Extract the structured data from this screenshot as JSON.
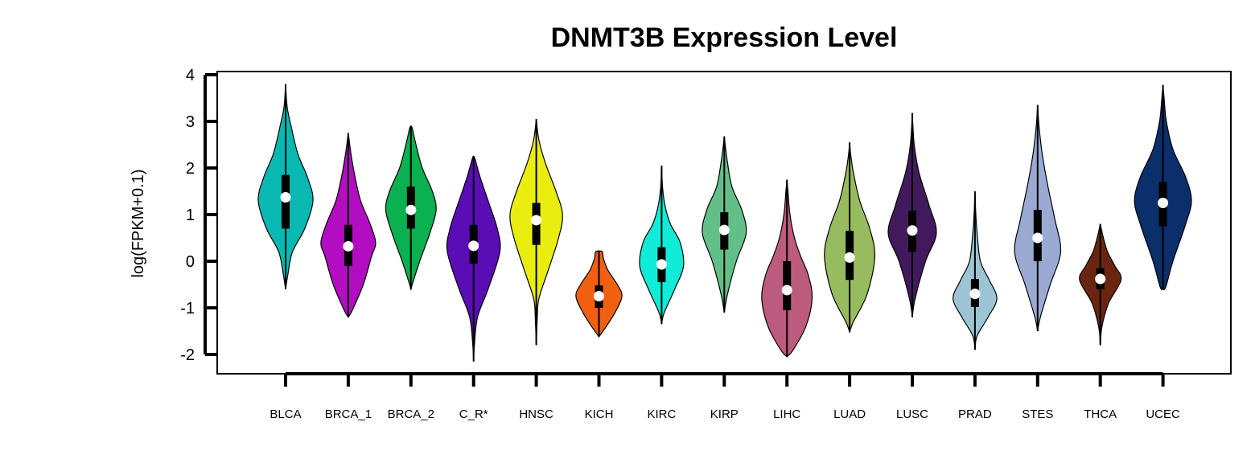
{
  "chart_data": {
    "type": "violin",
    "title": "DNMT3B Expression Level",
    "xlabel": "",
    "ylabel": "log(FPKM+0.1)",
    "ylim": [
      -2.4,
      4.1
    ],
    "yticks": [
      -2,
      -1,
      0,
      1,
      2,
      3,
      4
    ],
    "grid": false,
    "categories": [
      "BLCA",
      "BRCA_1",
      "BRCA_2",
      "C_R*",
      "HNSC",
      "KICH",
      "KIRC",
      "KIRP",
      "LIHC",
      "LUAD",
      "LUSC",
      "PRAD",
      "STES",
      "THCA",
      "UCEC"
    ],
    "series": [
      {
        "category": "BLCA",
        "color": "#0ab8b2",
        "min": -0.6,
        "max": 3.8,
        "q1": 0.7,
        "median": 1.37,
        "q3": 1.85,
        "width": 0.5,
        "profile": [
          [
            -0.6,
            0.0
          ],
          [
            -0.3,
            0.08
          ],
          [
            0.2,
            0.25
          ],
          [
            0.7,
            0.7
          ],
          [
            1.3,
            1.0
          ],
          [
            1.8,
            0.8
          ],
          [
            2.3,
            0.45
          ],
          [
            2.9,
            0.2
          ],
          [
            3.3,
            0.06
          ],
          [
            3.8,
            0.0
          ]
        ]
      },
      {
        "category": "BRCA_1",
        "color": "#b20dc1",
        "min": -1.2,
        "max": 2.75,
        "q1": -0.1,
        "median": 0.32,
        "q3": 0.78,
        "width": 0.5,
        "profile": [
          [
            -1.2,
            0.0
          ],
          [
            -1.05,
            0.15
          ],
          [
            -0.5,
            0.55
          ],
          [
            0.1,
            0.85
          ],
          [
            0.4,
            1.0
          ],
          [
            0.8,
            0.8
          ],
          [
            1.3,
            0.45
          ],
          [
            1.8,
            0.25
          ],
          [
            2.3,
            0.1
          ],
          [
            2.75,
            0.0
          ]
        ]
      },
      {
        "category": "BRCA_2",
        "color": "#0bb050",
        "min": -0.6,
        "max": 2.9,
        "q1": 0.7,
        "median": 1.1,
        "q3": 1.6,
        "width": 0.46,
        "profile": [
          [
            -0.6,
            0.0
          ],
          [
            -0.45,
            0.08
          ],
          [
            0.0,
            0.35
          ],
          [
            0.6,
            0.75
          ],
          [
            1.1,
            1.0
          ],
          [
            1.5,
            0.85
          ],
          [
            2.0,
            0.45
          ],
          [
            2.5,
            0.2
          ],
          [
            2.85,
            0.05
          ],
          [
            2.9,
            0.0
          ]
        ]
      },
      {
        "category": "C_R*",
        "color": "#5a0db5",
        "min": -2.15,
        "max": 2.25,
        "q1": -0.05,
        "median": 0.33,
        "q3": 0.78,
        "width": 0.48,
        "profile": [
          [
            -2.15,
            0.0
          ],
          [
            -1.8,
            0.03
          ],
          [
            -1.2,
            0.15
          ],
          [
            -0.6,
            0.55
          ],
          [
            0.2,
            1.0
          ],
          [
            0.7,
            0.9
          ],
          [
            1.3,
            0.55
          ],
          [
            1.8,
            0.25
          ],
          [
            2.2,
            0.05
          ],
          [
            2.25,
            0.0
          ]
        ]
      },
      {
        "category": "HNSC",
        "color": "#eaee10",
        "min": -1.8,
        "max": 3.05,
        "q1": 0.35,
        "median": 0.88,
        "q3": 1.25,
        "width": 0.48,
        "profile": [
          [
            -1.8,
            0.0
          ],
          [
            -1.2,
            0.04
          ],
          [
            -0.8,
            0.1
          ],
          [
            -0.2,
            0.45
          ],
          [
            0.5,
            0.85
          ],
          [
            1.0,
            1.0
          ],
          [
            1.5,
            0.75
          ],
          [
            2.1,
            0.35
          ],
          [
            2.6,
            0.1
          ],
          [
            3.05,
            0.0
          ]
        ]
      },
      {
        "category": "KICH",
        "color": "#f06010",
        "min": -1.62,
        "max": 0.22,
        "q1": -1.0,
        "median": -0.75,
        "q3": -0.52,
        "width": 0.42,
        "profile": [
          [
            -1.62,
            0.0
          ],
          [
            -1.45,
            0.25
          ],
          [
            -1.1,
            0.7
          ],
          [
            -0.75,
            1.0
          ],
          [
            -0.5,
            0.8
          ],
          [
            -0.2,
            0.4
          ],
          [
            0.05,
            0.2
          ],
          [
            0.2,
            0.15
          ],
          [
            0.22,
            0.0
          ]
        ]
      },
      {
        "category": "KIRC",
        "color": "#10ecd7",
        "min": -1.35,
        "max": 2.05,
        "q1": -0.45,
        "median": -0.07,
        "q3": 0.3,
        "width": 0.4,
        "profile": [
          [
            -1.35,
            0.0
          ],
          [
            -1.1,
            0.12
          ],
          [
            -0.6,
            0.6
          ],
          [
            -0.1,
            1.0
          ],
          [
            0.4,
            0.85
          ],
          [
            0.8,
            0.4
          ],
          [
            1.2,
            0.15
          ],
          [
            1.6,
            0.04
          ],
          [
            2.05,
            0.0
          ]
        ]
      },
      {
        "category": "KIRP",
        "color": "#62bf88",
        "min": -1.1,
        "max": 2.68,
        "q1": 0.25,
        "median": 0.67,
        "q3": 1.05,
        "width": 0.4,
        "profile": [
          [
            -1.1,
            0.0
          ],
          [
            -0.7,
            0.15
          ],
          [
            0.0,
            0.55
          ],
          [
            0.6,
            1.0
          ],
          [
            1.1,
            0.8
          ],
          [
            1.6,
            0.35
          ],
          [
            2.2,
            0.12
          ],
          [
            2.68,
            0.0
          ]
        ]
      },
      {
        "category": "LIHC",
        "color": "#bd5b7e",
        "min": -2.05,
        "max": 1.75,
        "q1": -1.05,
        "median": -0.62,
        "q3": 0.0,
        "width": 0.46,
        "profile": [
          [
            -2.05,
            0.0
          ],
          [
            -1.9,
            0.25
          ],
          [
            -1.4,
            0.75
          ],
          [
            -0.8,
            1.0
          ],
          [
            -0.3,
            0.85
          ],
          [
            0.1,
            0.55
          ],
          [
            0.5,
            0.3
          ],
          [
            1.0,
            0.12
          ],
          [
            1.5,
            0.04
          ],
          [
            1.75,
            0.0
          ]
        ]
      },
      {
        "category": "LUAD",
        "color": "#97bc60",
        "min": -1.52,
        "max": 2.55,
        "q1": -0.4,
        "median": 0.08,
        "q3": 0.65,
        "width": 0.46,
        "profile": [
          [
            -1.52,
            0.0
          ],
          [
            -1.3,
            0.15
          ],
          [
            -0.7,
            0.7
          ],
          [
            0.1,
            1.0
          ],
          [
            0.7,
            0.8
          ],
          [
            1.3,
            0.4
          ],
          [
            1.9,
            0.15
          ],
          [
            2.3,
            0.04
          ],
          [
            2.55,
            0.0
          ]
        ]
      },
      {
        "category": "LUSC",
        "color": "#43195e",
        "min": -1.2,
        "max": 3.18,
        "q1": 0.2,
        "median": 0.66,
        "q3": 1.08,
        "width": 0.44,
        "profile": [
          [
            -1.2,
            0.0
          ],
          [
            -0.8,
            0.12
          ],
          [
            0.0,
            0.55
          ],
          [
            0.6,
            1.0
          ],
          [
            1.2,
            0.7
          ],
          [
            1.9,
            0.28
          ],
          [
            2.5,
            0.08
          ],
          [
            3.18,
            0.0
          ]
        ]
      },
      {
        "category": "PRAD",
        "color": "#9dc4d4",
        "min": -1.9,
        "max": 1.5,
        "q1": -0.98,
        "median": -0.7,
        "q3": -0.38,
        "width": 0.4,
        "profile": [
          [
            -1.9,
            0.0
          ],
          [
            -1.6,
            0.1
          ],
          [
            -1.2,
            0.6
          ],
          [
            -0.8,
            1.0
          ],
          [
            -0.4,
            0.65
          ],
          [
            0.0,
            0.25
          ],
          [
            0.6,
            0.1
          ],
          [
            1.0,
            0.04
          ],
          [
            1.5,
            0.0
          ]
        ]
      },
      {
        "category": "STES",
        "color": "#9aaad2",
        "min": -1.5,
        "max": 3.35,
        "q1": 0.0,
        "median": 0.5,
        "q3": 1.1,
        "width": 0.42,
        "profile": [
          [
            -1.5,
            0.0
          ],
          [
            -1.2,
            0.12
          ],
          [
            -0.5,
            0.55
          ],
          [
            0.2,
            1.0
          ],
          [
            0.9,
            0.75
          ],
          [
            1.6,
            0.45
          ],
          [
            2.3,
            0.2
          ],
          [
            2.9,
            0.06
          ],
          [
            3.35,
            0.0
          ]
        ]
      },
      {
        "category": "THCA",
        "color": "#6a2510",
        "min": -1.8,
        "max": 0.8,
        "q1": -0.6,
        "median": -0.38,
        "q3": -0.15,
        "width": 0.38,
        "profile": [
          [
            -1.8,
            0.0
          ],
          [
            -1.4,
            0.08
          ],
          [
            -0.9,
            0.4
          ],
          [
            -0.4,
            1.0
          ],
          [
            -0.1,
            0.7
          ],
          [
            0.2,
            0.35
          ],
          [
            0.5,
            0.15
          ],
          [
            0.8,
            0.0
          ]
        ]
      },
      {
        "category": "UCEC",
        "color": "#0a2f6a",
        "min": -0.6,
        "max": 3.78,
        "q1": 0.75,
        "median": 1.25,
        "q3": 1.7,
        "width": 0.52,
        "profile": [
          [
            -0.6,
            0.0
          ],
          [
            -0.55,
            0.1
          ],
          [
            0.0,
            0.35
          ],
          [
            0.8,
            0.8
          ],
          [
            1.3,
            1.0
          ],
          [
            1.8,
            0.8
          ],
          [
            2.4,
            0.35
          ],
          [
            3.0,
            0.12
          ],
          [
            3.5,
            0.04
          ],
          [
            3.78,
            0.0
          ]
        ]
      }
    ]
  }
}
